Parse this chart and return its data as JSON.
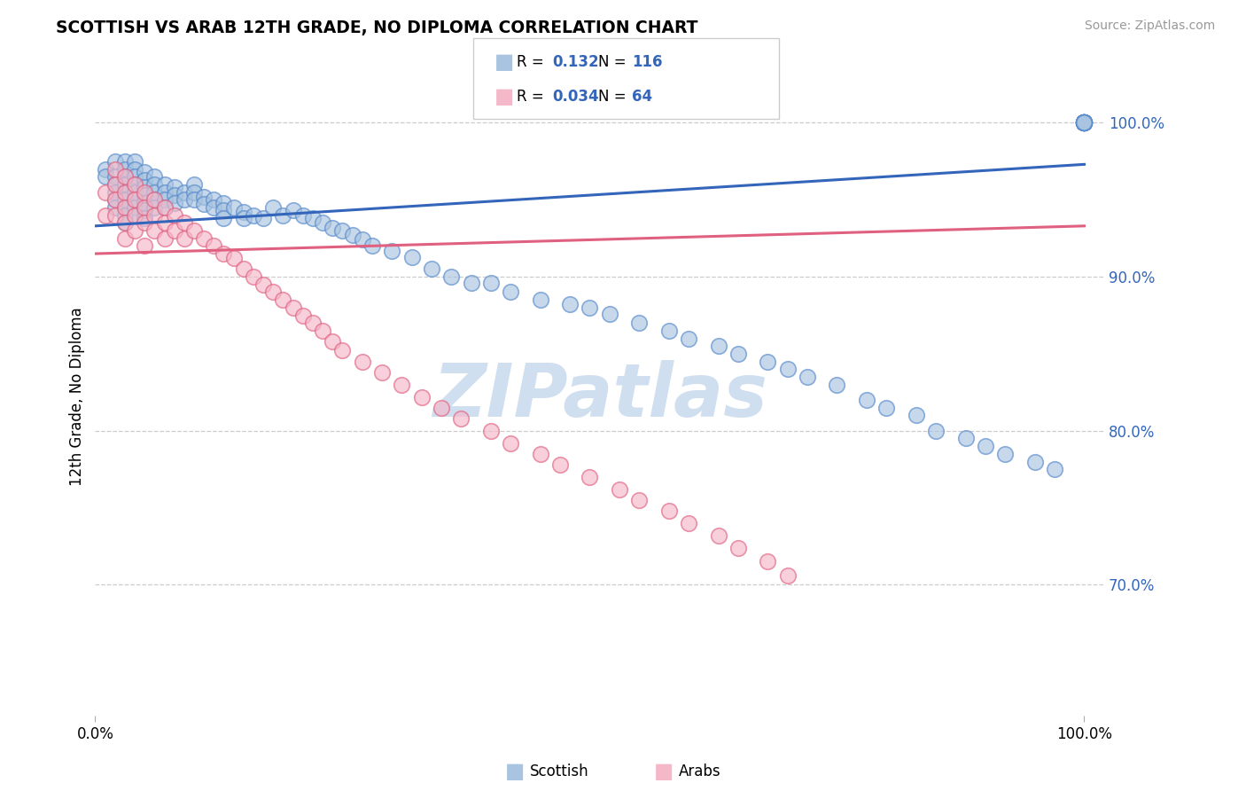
{
  "title": "SCOTTISH VS ARAB 12TH GRADE, NO DIPLOMA CORRELATION CHART",
  "source": "Source: ZipAtlas.com",
  "ylabel": "12th Grade, No Diploma",
  "legend_r_scottish_val": "0.132",
  "legend_n_scottish_val": "116",
  "legend_r_arab_val": "0.034",
  "legend_n_arab_val": "64",
  "ytick_values": [
    0.7,
    0.8,
    0.9,
    1.0
  ],
  "ytick_labels": [
    "70.0%",
    "80.0%",
    "90.0%",
    "100.0%"
  ],
  "xlim": [
    0.0,
    1.02
  ],
  "ylim": [
    0.615,
    1.03
  ],
  "scottish_color": "#A8C4E0",
  "arab_color": "#F5B8C8",
  "scottish_edge_color": "#5588CC",
  "arab_edge_color": "#E06080",
  "scottish_line_color": "#3366BB",
  "arab_line_color": "#E06080",
  "background_color": "#FFFFFF",
  "grid_color": "#CCCCCC",
  "watermark_text": "ZIPatlas",
  "watermark_color": "#D0DFF0",
  "legend_box_color": "#EEEEEE",
  "legend_border_color": "#CCCCCC",
  "right_tick_color": "#3366BB",
  "scottish_x": [
    0.01,
    0.01,
    0.02,
    0.02,
    0.02,
    0.02,
    0.02,
    0.02,
    0.03,
    0.03,
    0.03,
    0.03,
    0.03,
    0.03,
    0.03,
    0.03,
    0.03,
    0.04,
    0.04,
    0.04,
    0.04,
    0.04,
    0.04,
    0.04,
    0.04,
    0.05,
    0.05,
    0.05,
    0.05,
    0.05,
    0.05,
    0.05,
    0.06,
    0.06,
    0.06,
    0.06,
    0.06,
    0.07,
    0.07,
    0.07,
    0.07,
    0.08,
    0.08,
    0.08,
    0.09,
    0.09,
    0.1,
    0.1,
    0.1,
    0.11,
    0.11,
    0.12,
    0.12,
    0.13,
    0.13,
    0.13,
    0.14,
    0.15,
    0.15,
    0.16,
    0.17,
    0.18,
    0.19,
    0.2,
    0.21,
    0.22,
    0.23,
    0.24,
    0.25,
    0.26,
    0.27,
    0.28,
    0.3,
    0.32,
    0.34,
    0.36,
    0.38,
    0.4,
    0.42,
    0.45,
    0.48,
    0.5,
    0.52,
    0.55,
    0.58,
    0.6,
    0.63,
    0.65,
    0.68,
    0.7,
    0.72,
    0.75,
    0.78,
    0.8,
    0.83,
    0.85,
    0.88,
    0.9,
    0.92,
    0.95,
    0.97,
    1.0,
    1.0,
    1.0,
    1.0,
    1.0,
    1.0,
    1.0,
    1.0,
    1.0,
    1.0,
    1.0,
    1.0,
    1.0,
    1.0,
    1.0,
    1.0,
    1.0,
    1.0
  ],
  "scottish_y": [
    0.97,
    0.965,
    0.975,
    0.965,
    0.96,
    0.955,
    0.95,
    0.945,
    0.975,
    0.97,
    0.965,
    0.96,
    0.955,
    0.95,
    0.945,
    0.94,
    0.935,
    0.975,
    0.97,
    0.965,
    0.96,
    0.955,
    0.95,
    0.945,
    0.94,
    0.968,
    0.963,
    0.958,
    0.953,
    0.948,
    0.943,
    0.938,
    0.965,
    0.96,
    0.955,
    0.95,
    0.945,
    0.96,
    0.955,
    0.95,
    0.945,
    0.958,
    0.953,
    0.948,
    0.955,
    0.95,
    0.96,
    0.955,
    0.95,
    0.952,
    0.947,
    0.95,
    0.945,
    0.948,
    0.943,
    0.938,
    0.945,
    0.942,
    0.938,
    0.94,
    0.938,
    0.945,
    0.94,
    0.943,
    0.94,
    0.938,
    0.935,
    0.932,
    0.93,
    0.927,
    0.924,
    0.92,
    0.917,
    0.913,
    0.905,
    0.9,
    0.896,
    0.896,
    0.89,
    0.885,
    0.882,
    0.88,
    0.876,
    0.87,
    0.865,
    0.86,
    0.855,
    0.85,
    0.845,
    0.84,
    0.835,
    0.83,
    0.82,
    0.815,
    0.81,
    0.8,
    0.795,
    0.79,
    0.785,
    0.78,
    0.775,
    1.0,
    1.0,
    1.0,
    1.0,
    1.0,
    1.0,
    1.0,
    1.0,
    1.0,
    1.0,
    1.0,
    1.0,
    1.0,
    1.0,
    1.0,
    1.0,
    1.0,
    1.0
  ],
  "arab_x": [
    0.01,
    0.01,
    0.02,
    0.02,
    0.02,
    0.02,
    0.03,
    0.03,
    0.03,
    0.03,
    0.03,
    0.04,
    0.04,
    0.04,
    0.04,
    0.05,
    0.05,
    0.05,
    0.05,
    0.06,
    0.06,
    0.06,
    0.07,
    0.07,
    0.07,
    0.08,
    0.08,
    0.09,
    0.09,
    0.1,
    0.11,
    0.12,
    0.13,
    0.14,
    0.15,
    0.16,
    0.17,
    0.18,
    0.19,
    0.2,
    0.21,
    0.22,
    0.23,
    0.24,
    0.25,
    0.27,
    0.29,
    0.31,
    0.33,
    0.35,
    0.37,
    0.4,
    0.42,
    0.45,
    0.47,
    0.5,
    0.53,
    0.55,
    0.58,
    0.6,
    0.63,
    0.65,
    0.68,
    0.7
  ],
  "arab_y": [
    0.955,
    0.94,
    0.97,
    0.96,
    0.95,
    0.94,
    0.965,
    0.955,
    0.945,
    0.935,
    0.925,
    0.96,
    0.95,
    0.94,
    0.93,
    0.955,
    0.945,
    0.935,
    0.92,
    0.95,
    0.94,
    0.93,
    0.945,
    0.935,
    0.925,
    0.94,
    0.93,
    0.935,
    0.925,
    0.93,
    0.925,
    0.92,
    0.915,
    0.912,
    0.905,
    0.9,
    0.895,
    0.89,
    0.885,
    0.88,
    0.875,
    0.87,
    0.865,
    0.858,
    0.852,
    0.845,
    0.838,
    0.83,
    0.822,
    0.815,
    0.808,
    0.8,
    0.792,
    0.785,
    0.778,
    0.77,
    0.762,
    0.755,
    0.748,
    0.74,
    0.732,
    0.724,
    0.715,
    0.706
  ],
  "scottish_trend_start_y": 0.933,
  "scottish_trend_end_y": 0.973,
  "arab_trend_start_y": 0.915,
  "arab_trend_end_y": 0.933
}
